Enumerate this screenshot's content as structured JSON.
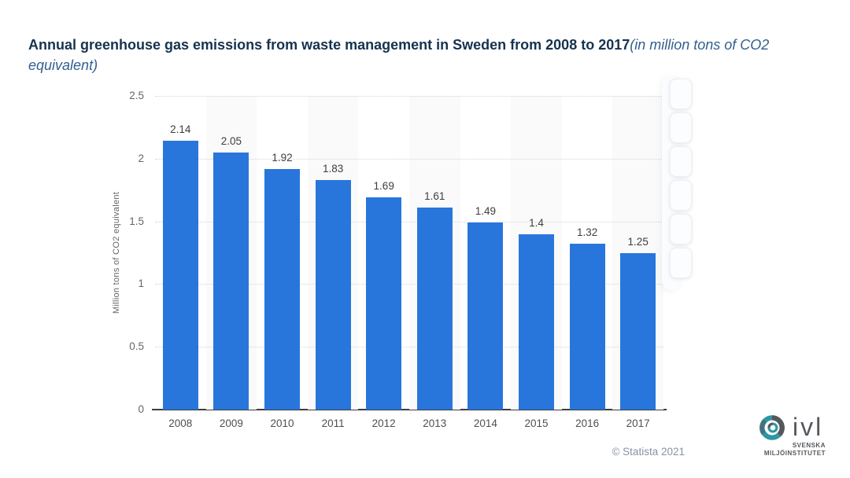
{
  "title": {
    "bold_text": "Annual greenhouse gas emissions from waste management in Sweden from 2008 to 2017",
    "italic_text": "(in million tons of CO2 equivalent)"
  },
  "chart_data": {
    "type": "bar",
    "title": "Annual greenhouse gas emissions from waste management in Sweden from 2008 to 2017 (in million tons of CO2 equivalent)",
    "categories": [
      "2008",
      "2009",
      "2010",
      "2011",
      "2012",
      "2013",
      "2014",
      "2015",
      "2016",
      "2017"
    ],
    "values": [
      2.14,
      2.05,
      1.92,
      1.83,
      1.69,
      1.61,
      1.49,
      1.4,
      1.32,
      1.25
    ],
    "value_labels": [
      "2.14",
      "2.05",
      "1.92",
      "1.83",
      "1.69",
      "1.61",
      "1.49",
      "1.4",
      "1.32",
      "1.25"
    ],
    "xlabel": "",
    "ylabel": "Million tons of CO2 equivalent",
    "ylim": [
      0,
      2.5
    ],
    "yticks": [
      0,
      0.5,
      1,
      1.5,
      2,
      2.5
    ],
    "ytick_labels": [
      "0",
      "0.5",
      "1",
      "1.5",
      "2",
      "2.5"
    ],
    "grid": true,
    "grid_style": "dotted",
    "legend": "none",
    "bar_color": "#2876dc",
    "stripe_color": "#fafafa"
  },
  "toolbar": {
    "button_count": 6
  },
  "footer": {
    "copyright": "© Statista 2021"
  },
  "logo": {
    "text": "ivl",
    "subtitle_line1": "SVENSKA",
    "subtitle_line2": "MILJÖINSTITUTET",
    "teal": "#2e96a3",
    "gray": "#54585c"
  }
}
